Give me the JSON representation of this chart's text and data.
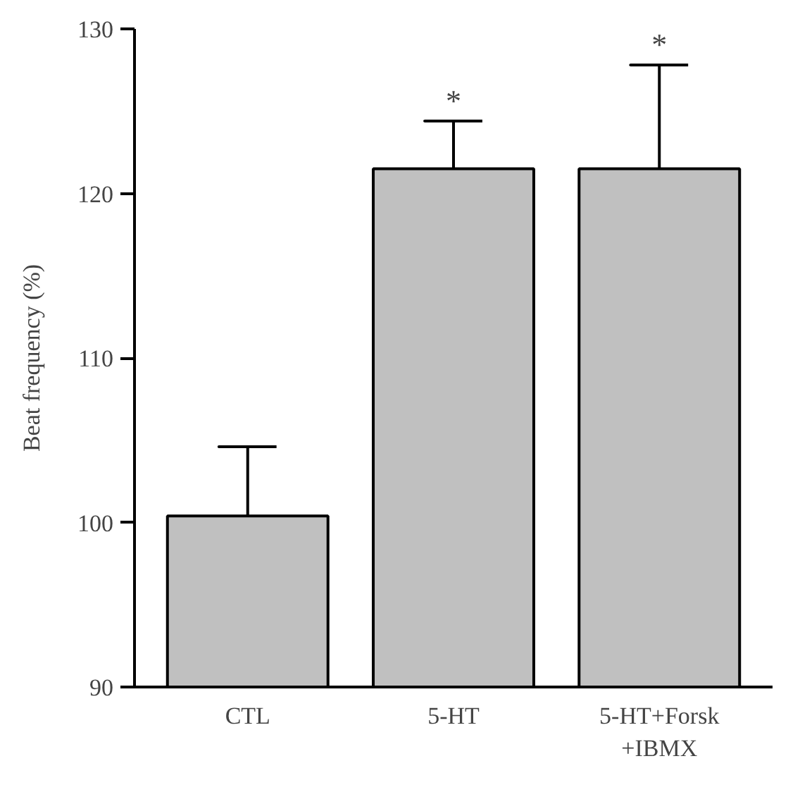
{
  "chart_data": {
    "type": "bar",
    "ylabel": "Beat frequency (%)",
    "categories": [
      "CTL",
      "5-HT",
      "5-HT+Forsk\n+IBMX"
    ],
    "values": [
      100.4,
      121.5,
      121.5
    ],
    "errors": [
      [
        100.4,
        104.6
      ],
      [
        121.5,
        124.4
      ],
      [
        121.5,
        127.8
      ]
    ],
    "color": "#c0c0c0",
    "ylim": [
      90,
      130
    ],
    "yticks": [
      90,
      100,
      110,
      120,
      130
    ],
    "grid": false,
    "annotations": [
      {
        "text": "*",
        "x": "5-HT",
        "y": 124.4
      },
      {
        "text": "*",
        "x": "5-HT+Forsk\n+IBMX",
        "y": 127.8
      }
    ]
  }
}
